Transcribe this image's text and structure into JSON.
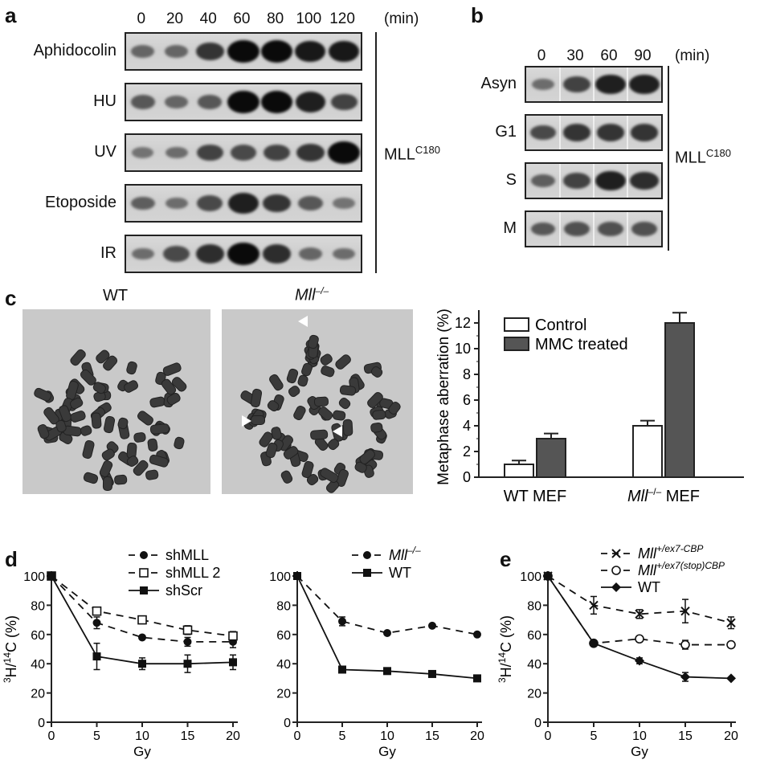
{
  "panel_a": {
    "label": "a",
    "times": [
      "0",
      "20",
      "40",
      "60",
      "80",
      "100",
      "120"
    ],
    "unit": "(min)",
    "rows": [
      {
        "name": "Aphidocolin",
        "levels": [
          0.35,
          0.35,
          0.7,
          1.0,
          1.0,
          0.9,
          0.9
        ]
      },
      {
        "name": "HU",
        "levels": [
          0.45,
          0.35,
          0.45,
          1.0,
          1.0,
          0.85,
          0.6
        ]
      },
      {
        "name": "UV",
        "levels": [
          0.25,
          0.3,
          0.6,
          0.55,
          0.6,
          0.7,
          1.0
        ]
      },
      {
        "name": "Etoposide",
        "levels": [
          0.4,
          0.3,
          0.55,
          0.85,
          0.7,
          0.45,
          0.25
        ]
      },
      {
        "name": "IR",
        "levels": [
          0.3,
          0.55,
          0.75,
          1.0,
          0.75,
          0.35,
          0.3
        ]
      }
    ],
    "side_label": "MLL",
    "side_sup": "C180"
  },
  "panel_b": {
    "label": "b",
    "times": [
      "0",
      "30",
      "60",
      "90"
    ],
    "unit": "(min)",
    "rows": [
      {
        "name": "Asyn",
        "levels": [
          0.3,
          0.6,
          0.85,
          0.85
        ]
      },
      {
        "name": "G1",
        "levels": [
          0.55,
          0.7,
          0.7,
          0.7
        ]
      },
      {
        "name": "S",
        "levels": [
          0.4,
          0.6,
          0.85,
          0.75
        ]
      },
      {
        "name": "M",
        "levels": [
          0.45,
          0.5,
          0.5,
          0.5
        ]
      }
    ],
    "side_label": "MLL",
    "side_sup": "C180"
  },
  "panel_c": {
    "label": "c",
    "image_wt_title": "WT",
    "image_ko_title": "Mll",
    "image_ko_sup": "–/–",
    "chart_data": {
      "type": "bar",
      "categories": [
        "WT MEF",
        "Mll–/– MEF"
      ],
      "category_main": [
        "WT MEF",
        "Mll"
      ],
      "category_sup": [
        "",
        "–/–"
      ],
      "category_suffix": [
        "",
        " MEF"
      ],
      "series": [
        {
          "name": "Control",
          "values": [
            1.0,
            4.0
          ],
          "errors": [
            0.3,
            0.4
          ],
          "color": "#ffffff"
        },
        {
          "name": "MMC treated",
          "values": [
            3.0,
            12.0
          ],
          "errors": [
            0.4,
            0.8
          ],
          "color": "#555555"
        }
      ],
      "ylabel": "Metaphase aberration (%)",
      "ylim": [
        0,
        12.5
      ],
      "yticks": [
        "0",
        "2",
        "4",
        "6",
        "8",
        "10",
        "12"
      ],
      "legend": "top-left"
    }
  },
  "panel_d": {
    "label": "d",
    "charts": [
      {
        "type": "line",
        "x": [
          0,
          5,
          10,
          15,
          20
        ],
        "xticks": [
          "0",
          "5",
          "10",
          "15",
          "20"
        ],
        "yticks": [
          "0",
          "20",
          "40",
          "60",
          "80",
          "100"
        ],
        "xlabel": "Gy",
        "ylabel": "3H/14C (%)",
        "ylim": [
          0,
          100
        ],
        "series": [
          {
            "name": "shMLL",
            "values": [
              100,
              68,
              58,
              55,
              55
            ],
            "errors": [
              0,
              4,
              0,
              3,
              4
            ],
            "marker": "filled-circle",
            "dash": true
          },
          {
            "name": "shMLL 2",
            "values": [
              100,
              76,
              70,
              63,
              59
            ],
            "errors": [
              0,
              2,
              0,
              3,
              3
            ],
            "marker": "open-square",
            "dash": true
          },
          {
            "name": "shScr",
            "values": [
              100,
              45,
              40,
              40,
              41
            ],
            "errors": [
              0,
              9,
              4,
              6,
              5
            ],
            "marker": "filled-square",
            "dash": false
          }
        ]
      },
      {
        "type": "line",
        "x": [
          0,
          5,
          10,
          15,
          20
        ],
        "xticks": [
          "0",
          "5",
          "10",
          "15",
          "20"
        ],
        "yticks": [
          "0",
          "20",
          "40",
          "60",
          "80",
          "100"
        ],
        "xlabel": "Gy",
        "ylim": [
          0,
          100
        ],
        "series": [
          {
            "name": "Mll–/–",
            "values": [
              100,
              69,
              61,
              66,
              60
            ],
            "errors": [
              0,
              3,
              0,
              0,
              0
            ],
            "marker": "filled-circle",
            "dash": true
          },
          {
            "name": "WT",
            "values": [
              100,
              36,
              35,
              33,
              30
            ],
            "errors": [
              0,
              0,
              0,
              0,
              0
            ],
            "marker": "filled-square",
            "dash": false
          }
        ]
      }
    ]
  },
  "panel_e": {
    "label": "e",
    "chart": {
      "type": "line",
      "x": [
        0,
        5,
        10,
        15,
        20
      ],
      "xticks": [
        "0",
        "5",
        "10",
        "15",
        "20"
      ],
      "yticks": [
        "0",
        "20",
        "40",
        "60",
        "80",
        "100"
      ],
      "xlabel": "Gy",
      "ylabel": "3H/14C (%)",
      "ylim": [
        0,
        100
      ],
      "series": [
        {
          "name": "Mll+/ex7-CBP",
          "values": [
            100,
            80,
            74,
            76,
            68
          ],
          "errors": [
            0,
            6,
            3,
            8,
            4
          ],
          "marker": "x",
          "dash": true
        },
        {
          "name": "Mll+/ex7(stop)CBP",
          "values": [
            100,
            54,
            57,
            53,
            53
          ],
          "errors": [
            0,
            0,
            2,
            3,
            0
          ],
          "marker": "open-circle",
          "dash": true
        },
        {
          "name": "WT",
          "values": [
            100,
            54,
            42,
            31,
            30
          ],
          "errors": [
            0,
            2,
            2,
            3,
            0
          ],
          "marker": "filled-diamond",
          "dash": false
        }
      ]
    }
  }
}
